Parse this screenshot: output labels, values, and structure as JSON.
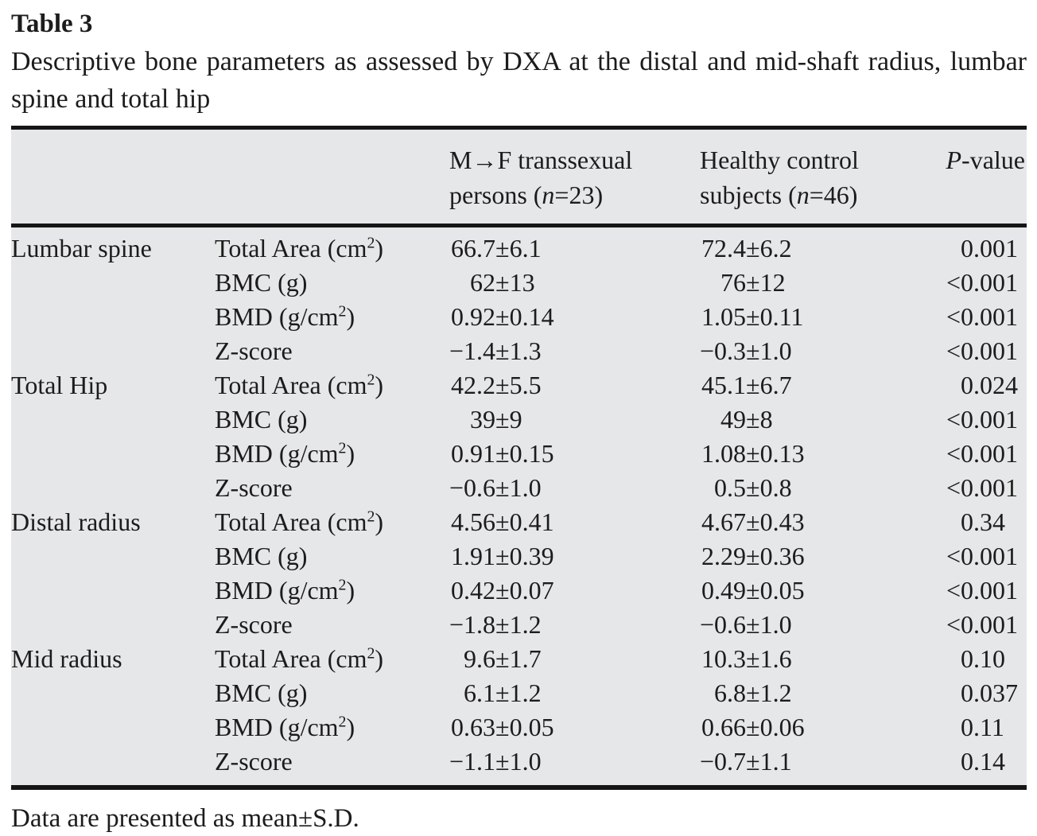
{
  "page": {
    "title": "Table 3",
    "caption": "Descriptive bone parameters as assessed by DXA at the distal and mid-shaft radius, lumbar spine and total hip",
    "footnote": "Data are presented as mean±S.D."
  },
  "colors": {
    "table_background": "#e6e7e8",
    "rule": "#161616",
    "text": "#1c1c1c"
  },
  "table": {
    "header": {
      "mf": {
        "line1": "M→F transsexual",
        "line2_pre": "persons (",
        "line2_var": "n",
        "line2_post": "=23)"
      },
      "control": {
        "line1": "Healthy control",
        "line2_pre": "subjects (",
        "line2_var": "n",
        "line2_post": "=46)"
      },
      "p": {
        "var": "P",
        "rest": "-value"
      }
    },
    "rows": [
      {
        "site": "Lumbar spine",
        "param": "Total Area (cm",
        "sup": "2",
        "param_end": ")",
        "mf": "66.7±6.1",
        "control": "72.4±6.2",
        "p": "0.001"
      },
      {
        "site": "",
        "param": "BMC (g)",
        "sup": "",
        "param_end": "",
        "mf": "62±13",
        "control": "76±12",
        "p": "<0.001"
      },
      {
        "site": "",
        "param": "BMD (g/cm",
        "sup": "2",
        "param_end": ")",
        "mf": "0.92±0.14",
        "control": "1.05±0.11",
        "p": "<0.001"
      },
      {
        "site": "",
        "param": "Z-score",
        "sup": "",
        "param_end": "",
        "mf": "−1.4±1.3",
        "control": "−0.3±1.0",
        "p": "<0.001"
      },
      {
        "site": "Total Hip",
        "param": "Total Area (cm",
        "sup": "2",
        "param_end": ")",
        "mf": "42.2±5.5",
        "control": "45.1±6.7",
        "p": "0.024"
      },
      {
        "site": "",
        "param": "BMC (g)",
        "sup": "",
        "param_end": "",
        "mf": "39±9",
        "control": "49±8",
        "p": "<0.001"
      },
      {
        "site": "",
        "param": "BMD (g/cm",
        "sup": "2",
        "param_end": ")",
        "mf": "0.91±0.15",
        "control": "1.08±0.13",
        "p": "<0.001"
      },
      {
        "site": "",
        "param": "Z-score",
        "sup": "",
        "param_end": "",
        "mf": "−0.6±1.0",
        "control": "0.5±0.8",
        "p": "<0.001"
      },
      {
        "site": "Distal radius",
        "param": "Total Area (cm",
        "sup": "2",
        "param_end": ")",
        "mf": "4.56±0.41",
        "control": "4.67±0.43",
        "p": "0.34"
      },
      {
        "site": "",
        "param": "BMC (g)",
        "sup": "",
        "param_end": "",
        "mf": "1.91±0.39",
        "control": "2.29±0.36",
        "p": "<0.001"
      },
      {
        "site": "",
        "param": "BMD (g/cm",
        "sup": "2",
        "param_end": ")",
        "mf": "0.42±0.07",
        "control": "0.49±0.05",
        "p": "<0.001"
      },
      {
        "site": "",
        "param": "Z-score",
        "sup": "",
        "param_end": "",
        "mf": "−1.8±1.2",
        "control": "−0.6±1.0",
        "p": "<0.001"
      },
      {
        "site": "Mid radius",
        "param": "Total Area (cm",
        "sup": "2",
        "param_end": ")",
        "mf": "9.6±1.7",
        "control": "10.3±1.6",
        "p": "0.10"
      },
      {
        "site": "",
        "param": "BMC (g)",
        "sup": "",
        "param_end": "",
        "mf": "6.1±1.2",
        "control": "6.8±1.2",
        "p": "0.037"
      },
      {
        "site": "",
        "param": "BMD (g/cm",
        "sup": "2",
        "param_end": ")",
        "mf": "0.63±0.05",
        "control": "0.66±0.06",
        "p": "0.11"
      },
      {
        "site": "",
        "param": "Z-score",
        "sup": "",
        "param_end": "",
        "mf": "−1.1±1.0",
        "control": "−0.7±1.1",
        "p": "0.14"
      }
    ]
  }
}
